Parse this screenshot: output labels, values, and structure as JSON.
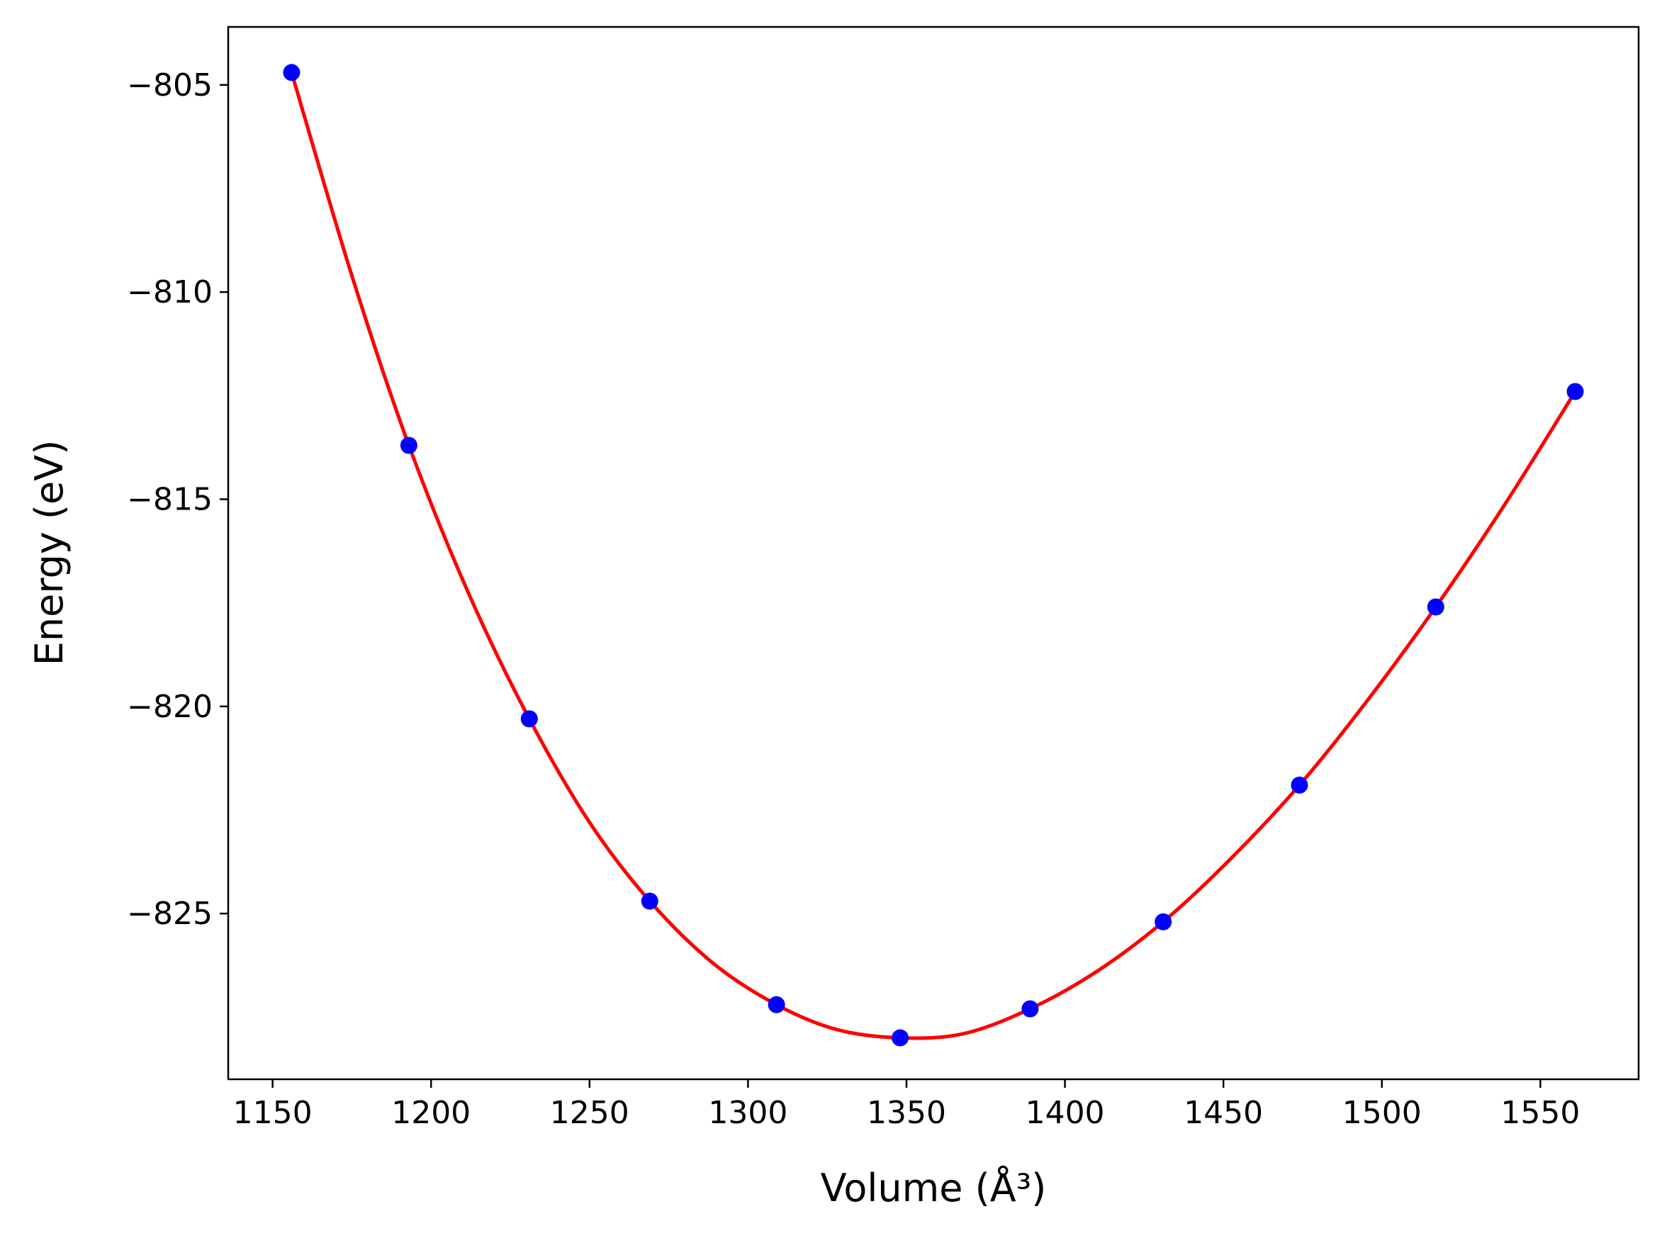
{
  "chart_data": {
    "type": "scatter",
    "title": "",
    "xlabel": "Volume (Å³)",
    "ylabel": "Energy (eV)",
    "xlim": [
      1136,
      1581
    ],
    "ylim": [
      -829.0,
      -803.6
    ],
    "xticks": [
      1150,
      1200,
      1250,
      1300,
      1350,
      1400,
      1450,
      1500,
      1550
    ],
    "yticks": [
      -805,
      -810,
      -815,
      -820,
      -825
    ],
    "xtick_labels": [
      "1150",
      "1200",
      "1250",
      "1300",
      "1350",
      "1400",
      "1450",
      "1500",
      "1550"
    ],
    "ytick_labels": [
      "−805",
      "−810",
      "−815",
      "−820",
      "−825"
    ],
    "grid": false,
    "series": [
      {
        "kind": "points",
        "color": "#0000ff",
        "x": [
          1156,
          1193,
          1231,
          1269,
          1309,
          1348,
          1389,
          1431,
          1474,
          1517,
          1561
        ],
        "y": [
          -804.7,
          -813.7,
          -820.3,
          -824.7,
          -827.2,
          -828.0,
          -827.3,
          -825.2,
          -821.9,
          -817.6,
          -812.4
        ]
      },
      {
        "kind": "fit-curve",
        "color": "#ff0000",
        "x": [
          1156,
          1175,
          1193,
          1212,
          1231,
          1250,
          1269,
          1289,
          1309,
          1328,
          1348,
          1368,
          1389,
          1410,
          1431,
          1452,
          1474,
          1495,
          1517,
          1539,
          1561
        ],
        "y": [
          -804.7,
          -809.6,
          -813.7,
          -817.3,
          -820.3,
          -822.8,
          -824.7,
          -826.2,
          -827.2,
          -827.8,
          -828.0,
          -827.9,
          -827.3,
          -826.4,
          -825.2,
          -823.7,
          -821.9,
          -819.9,
          -817.6,
          -815.1,
          -812.4
        ]
      }
    ]
  }
}
